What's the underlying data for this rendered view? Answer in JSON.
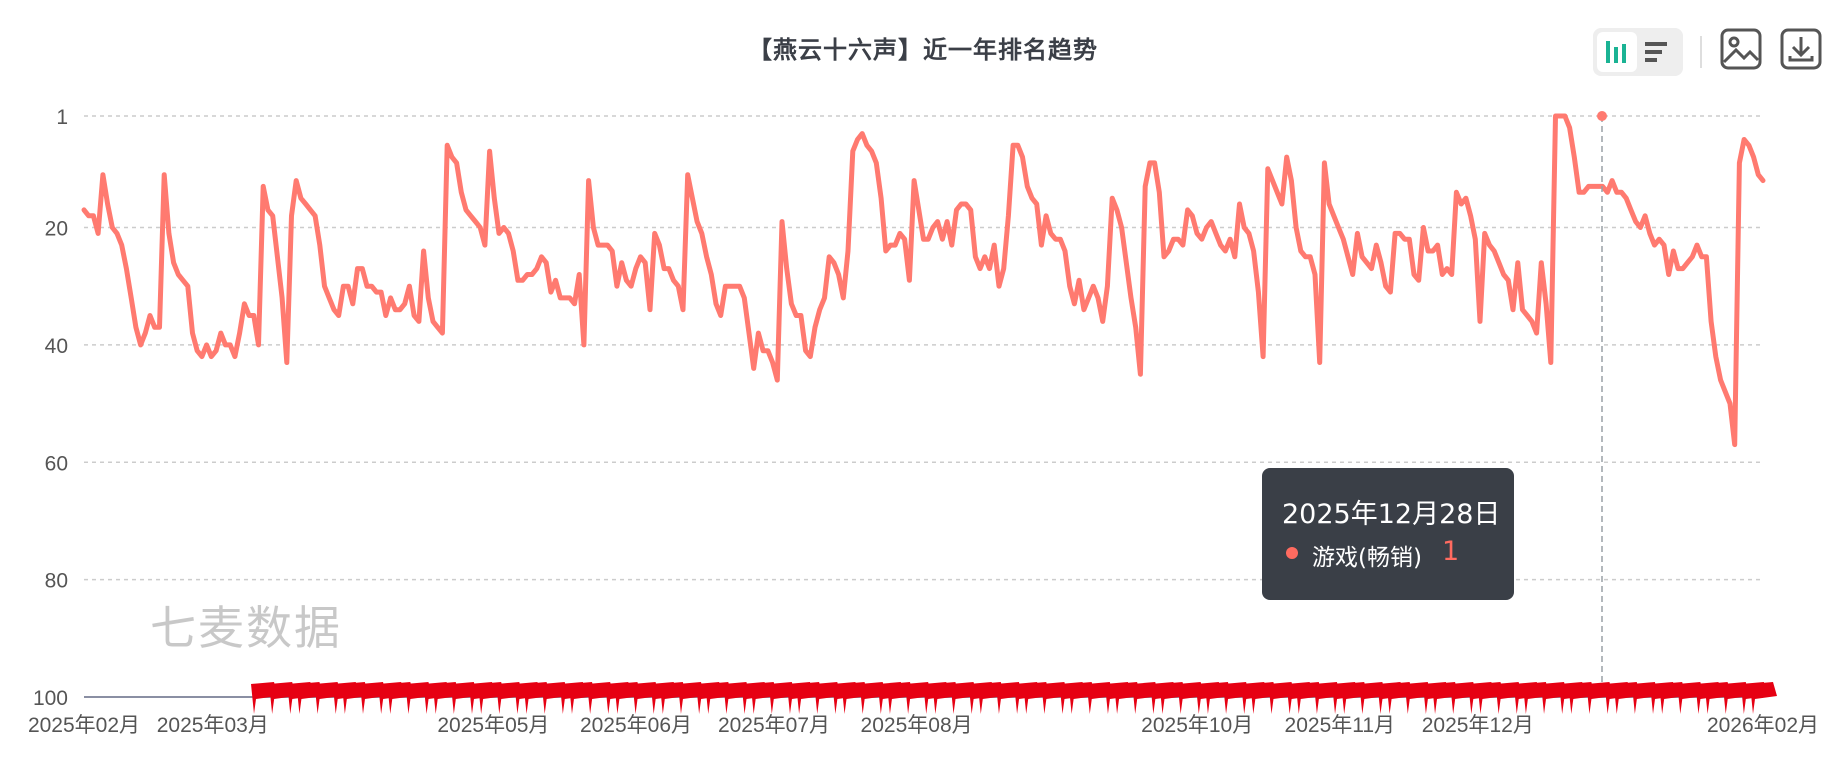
{
  "title": "【燕云十六声】近一年排名趋势",
  "watermark": "七麦数据",
  "toolbar": {
    "toggle_chart_icon": "bar-chart-icon",
    "toggle_list_icon": "list-icon",
    "image_icon": "image-icon",
    "download_icon": "download-icon"
  },
  "tooltip": {
    "date": "2025年12月28日",
    "series_name": "游戏(畅销)",
    "value": "1"
  },
  "colors": {
    "line": "#ff7a70",
    "flag": "#e60012",
    "tooltip_bg": "#3a3f47",
    "grid": "#cccccc"
  },
  "chart_data": {
    "type": "line",
    "title": "【燕云十六声】近一年排名趋势",
    "y_inverted": true,
    "ylim": [
      1,
      100
    ],
    "yticks": [
      "1",
      "20",
      "40",
      "60",
      "80",
      "100"
    ],
    "xticks": [
      "2025年02月",
      "2025年03月",
      "2025年05月",
      "2025年06月",
      "2025年07月",
      "2025年08月",
      "2025年10月",
      "2025年11月",
      "2025年12月",
      "2026年02月"
    ],
    "x_start": "2025-02-01",
    "x_end": "2026-02-01",
    "grid": true,
    "series": [
      {
        "name": "游戏(畅销)",
        "values": [
          17,
          18,
          18,
          21,
          11,
          16,
          20,
          21,
          23,
          27,
          32,
          37,
          40,
          38,
          35,
          37,
          37,
          11,
          21,
          26,
          28,
          29,
          30,
          38,
          41,
          42,
          40,
          42,
          41,
          38,
          40,
          40,
          42,
          38,
          33,
          35,
          35,
          40,
          13,
          17,
          18,
          25,
          32,
          43,
          18,
          12,
          15,
          16,
          17,
          18,
          23,
          30,
          32,
          34,
          35,
          30,
          30,
          33,
          27,
          27,
          30,
          30,
          31,
          31,
          35,
          32,
          34,
          34,
          33,
          30,
          35,
          36,
          24,
          32,
          36,
          37,
          38,
          6,
          8,
          9,
          14,
          17,
          18,
          19,
          20,
          23,
          7,
          15,
          21,
          20,
          21,
          24,
          29,
          29,
          28,
          28,
          27,
          25,
          26,
          31,
          29,
          32,
          32,
          32,
          33,
          28,
          40,
          12,
          20,
          23,
          23,
          23,
          24,
          30,
          26,
          29,
          30,
          27,
          25,
          26,
          34,
          21,
          23,
          27,
          27,
          29,
          30,
          34,
          11,
          15,
          19,
          21,
          25,
          28,
          33,
          35,
          30,
          30,
          30,
          30,
          32,
          38,
          44,
          38,
          41,
          41,
          43,
          46,
          19,
          27,
          33,
          35,
          35,
          41,
          42,
          37,
          34,
          32,
          25,
          26,
          28,
          32,
          24,
          7,
          5,
          4,
          6,
          7,
          9,
          15,
          24,
          23,
          23,
          21,
          22,
          29,
          12,
          17,
          22,
          22,
          20,
          19,
          22,
          19,
          23,
          17,
          16,
          16,
          17,
          25,
          27,
          25,
          27,
          23,
          30,
          27,
          18,
          6,
          6,
          8,
          13,
          15,
          16,
          23,
          18,
          21,
          22,
          22,
          24,
          30,
          33,
          29,
          34,
          32,
          30,
          32,
          36,
          30,
          15,
          17,
          20,
          26,
          32,
          37,
          45,
          13,
          9,
          9,
          14,
          25,
          24,
          22,
          22,
          23,
          17,
          18,
          21,
          22,
          20,
          19,
          21,
          23,
          24,
          22,
          25,
          16,
          20,
          21,
          24,
          31,
          42,
          10,
          12,
          14,
          16,
          8,
          12,
          20,
          24,
          25,
          25,
          28,
          43,
          9,
          16,
          18,
          20,
          22,
          25,
          28,
          21,
          25,
          26,
          27,
          23,
          26,
          30,
          31,
          21,
          21,
          22,
          22,
          28,
          29,
          20,
          24,
          24,
          23,
          28,
          27,
          28,
          14,
          16,
          15,
          18,
          22,
          36,
          21,
          23,
          24,
          26,
          28,
          29,
          34,
          26,
          34,
          35,
          36,
          38,
          26,
          33,
          43,
          1,
          1,
          1,
          3,
          8,
          14,
          14,
          13,
          13,
          13,
          13,
          14,
          12,
          14,
          14,
          15,
          17,
          19,
          20,
          18,
          21,
          23,
          22,
          23,
          28,
          24,
          27,
          27,
          26,
          25,
          23,
          25,
          25,
          36,
          42,
          46,
          48,
          50,
          57,
          9,
          5,
          6,
          8,
          11,
          12
        ]
      }
    ],
    "highlight": {
      "date": "2025-12-28",
      "value": 1
    },
    "flag_count": 100
  }
}
